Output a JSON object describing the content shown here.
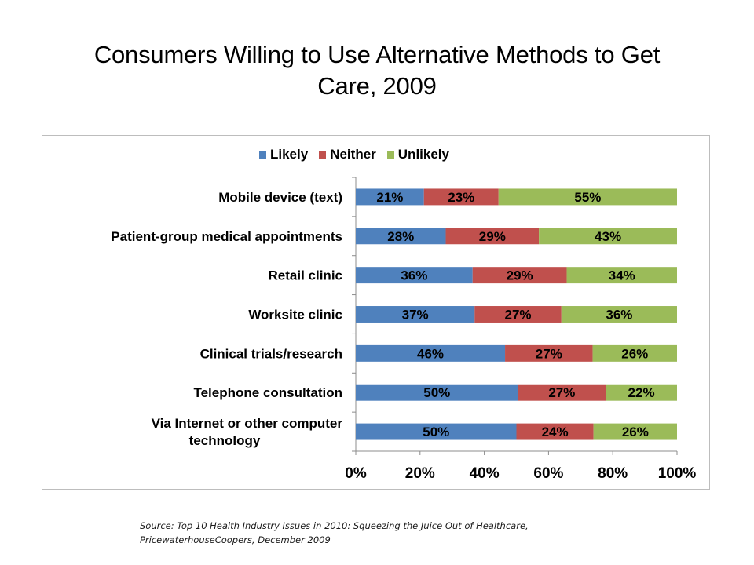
{
  "title_line1": "Consumers Willing to Use Alternative Methods to Get",
  "title_line2": "Care, 2009",
  "source_line1": "Source: Top 10 Health Industry Issues in 2010: Squeezing the Juice Out of Healthcare,",
  "source_line2": "PricewaterhouseCoopers, December 2009",
  "chart_data": {
    "type": "bar",
    "orientation": "horizontal",
    "stacking": "percent",
    "title": "Consumers Willing to Use Alternative Methods to Get Care, 2009",
    "xlabel": "",
    "ylabel": "",
    "xlim": [
      0,
      100
    ],
    "xticks": [
      0,
      20,
      40,
      60,
      80,
      100
    ],
    "xtick_labels": [
      "0%",
      "20%",
      "40%",
      "60%",
      "80%",
      "100%"
    ],
    "grid": false,
    "legend_position": "top",
    "categories": [
      [
        "Mobile device (text)"
      ],
      [
        "Patient-group medical appointments"
      ],
      [
        "Retail clinic"
      ],
      [
        "Worksite clinic"
      ],
      [
        "Clinical trials/research"
      ],
      [
        "Telephone consultation"
      ],
      [
        "Via Internet or other computer",
        "technology"
      ]
    ],
    "series": [
      {
        "name": "Likely",
        "color": "#4f81bd",
        "values": [
          21,
          28,
          36,
          37,
          46,
          50,
          50
        ]
      },
      {
        "name": "Neither",
        "color": "#c0504d",
        "values": [
          23,
          29,
          29,
          27,
          27,
          27,
          24
        ]
      },
      {
        "name": "Unlikely",
        "color": "#9bbb59",
        "values": [
          55,
          43,
          34,
          36,
          26,
          22,
          26
        ]
      }
    ],
    "value_label_suffix": "%"
  }
}
